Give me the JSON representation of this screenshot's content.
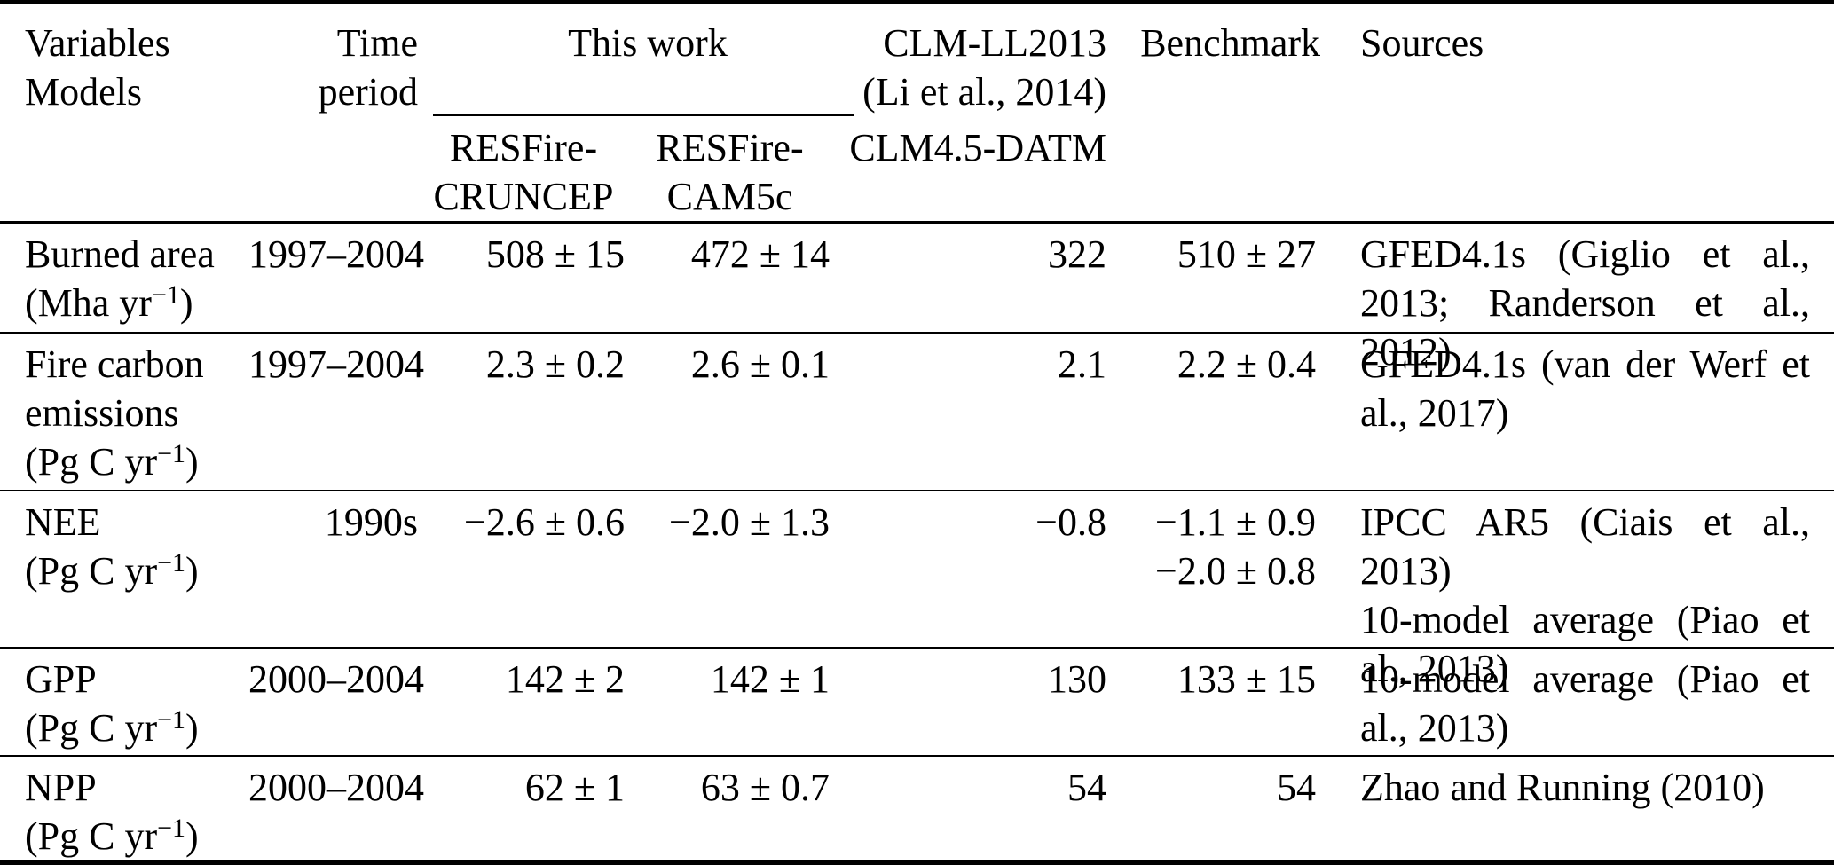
{
  "header": {
    "variables": {
      "line1": "Variables",
      "line2": "Models"
    },
    "time": {
      "line1": "Time",
      "line2": "period"
    },
    "this_work": {
      "label": "This work",
      "sub1": {
        "line1": "RESFire-",
        "line2": "CRUNCEP"
      },
      "sub2": {
        "line1": "RESFire-",
        "line2": "CAM5c"
      }
    },
    "clm": {
      "line1": "CLM-LL2013",
      "line2": "(Li et al., 2014)",
      "sub": "CLM4.5-DATM"
    },
    "benchmark": "Benchmark",
    "sources": "Sources"
  },
  "rows": [
    {
      "variable": "Burned area",
      "unit": {
        "pre": "(Mha yr",
        "sup": "−1",
        "post": ")"
      },
      "time": "1997–2004",
      "cruncep": "508 ± 15",
      "cam5c": "472 ± 14",
      "clm": "322",
      "benchmark": [
        "510 ± 27"
      ],
      "sources": [
        "GFED4.1s (Giglio et al., 2013; Randerson et al., 2012)"
      ]
    },
    {
      "variable": "Fire carbon emissions",
      "unit": {
        "pre": "(Pg C yr",
        "sup": "−1",
        "post": ")"
      },
      "time": "1997–2004",
      "cruncep": "2.3 ± 0.2",
      "cam5c": "2.6 ± 0.1",
      "clm": "2.1",
      "benchmark": [
        "2.2 ± 0.4"
      ],
      "sources": [
        "GFED4.1s (van der Werf et al., 2017)"
      ]
    },
    {
      "variable": "NEE",
      "unit": {
        "pre": "(Pg C yr",
        "sup": "−1",
        "post": ")"
      },
      "time": "1990s",
      "cruncep": "−2.6 ± 0.6",
      "cam5c": "−2.0 ± 1.3",
      "clm": "−0.8",
      "benchmark": [
        "−1.1 ± 0.9",
        "−2.0 ± 0.8"
      ],
      "sources": [
        "IPCC AR5 (Ciais et al., 2013)",
        "10-model average (Piao et al., 2013)"
      ]
    },
    {
      "variable": "GPP",
      "unit": {
        "pre": "(Pg C yr",
        "sup": "−1",
        "post": ")"
      },
      "time": "2000–2004",
      "cruncep": "142 ± 2",
      "cam5c": "142 ± 1",
      "clm": "130",
      "benchmark": [
        "133 ± 15"
      ],
      "sources": [
        "10-model average (Piao et al., 2013)"
      ]
    },
    {
      "variable": "NPP",
      "unit": {
        "pre": "(Pg C yr",
        "sup": "−1",
        "post": ")"
      },
      "time": "2000–2004",
      "cruncep": "62 ± 1",
      "cam5c": "63 ± 0.7",
      "clm": "54",
      "benchmark": [
        "54"
      ],
      "sources": [
        "Zhao and Running (2010)"
      ]
    }
  ]
}
